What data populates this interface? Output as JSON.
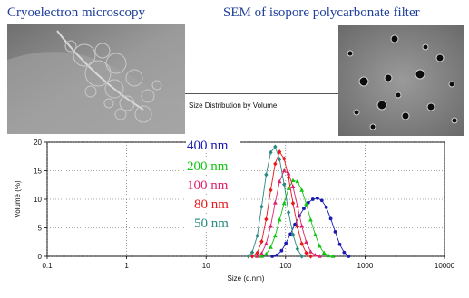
{
  "captions": {
    "left": "Cryoelectron microscopy",
    "right": "SEM of isopore polycarbonate filter"
  },
  "photo_left_label": "cryo-EM micrograph of vesicles",
  "photo_right_label": "SEM micrograph of porous filter",
  "colors": {
    "caption": "#1f3f99",
    "s400": "#1a1ab0",
    "s200": "#11c411",
    "s100": "#e0206a",
    "s80": "#e81818",
    "s50": "#2a8a80"
  },
  "chart_data": {
    "type": "line",
    "title": "Size Distribution by Volume",
    "xlabel": "Size (d.nm)",
    "ylabel": "Volume (%)",
    "xscale": "log",
    "xlim": [
      0.1,
      10000
    ],
    "ylim": [
      0,
      20
    ],
    "xticks": [
      "0.1",
      "1",
      "10",
      "100",
      "1000",
      "10000"
    ],
    "yticks": [
      "0",
      "5",
      "10",
      "15",
      "20"
    ],
    "grid": true,
    "legend_position": "top-center (inside plot)",
    "series": [
      {
        "name": "400 nm",
        "color": "#1a1ab0",
        "marker": "circle",
        "x": [
          68,
          78,
          89,
          101,
          115,
          131,
          149,
          170,
          193,
          220,
          251,
          286,
          325,
          370,
          421,
          480,
          546,
          622
        ],
        "y": [
          0,
          0.2,
          1.0,
          2.3,
          3.9,
          5.6,
          7.1,
          8.4,
          9.4,
          10.0,
          10.2,
          9.8,
          8.6,
          6.6,
          4.3,
          2.1,
          0.7,
          0
        ]
      },
      {
        "name": "200 nm",
        "color": "#11c411",
        "marker": "triangle",
        "x": [
          50,
          57,
          65,
          74,
          84,
          96,
          109,
          124,
          141,
          160,
          182,
          207,
          236,
          268,
          305,
          347,
          395
        ],
        "y": [
          0,
          0.4,
          1.6,
          3.6,
          6.4,
          9.3,
          11.9,
          13.3,
          13.1,
          11.6,
          9.2,
          6.4,
          3.8,
          1.8,
          0.6,
          0.1,
          0
        ]
      },
      {
        "name": "100 nm",
        "color": "#e0206a",
        "marker": "triangle",
        "x": [
          44,
          50,
          57,
          65,
          74,
          84,
          96,
          109,
          124,
          141,
          160,
          182,
          207,
          236,
          268
        ],
        "y": [
          0,
          0.5,
          2.2,
          5.3,
          9.4,
          13.1,
          15.0,
          14.5,
          12.2,
          8.8,
          5.3,
          2.5,
          0.8,
          0.2,
          0
        ]
      },
      {
        "name": "80 nm",
        "color": "#e81818",
        "marker": "diamond",
        "x": [
          38,
          44,
          50,
          57,
          65,
          74,
          84,
          96,
          109,
          124,
          141,
          160,
          182,
          207
        ],
        "y": [
          0,
          0.6,
          2.6,
          6.5,
          11.6,
          16.2,
          18.3,
          17.1,
          13.8,
          9.3,
          5.2,
          2.2,
          0.6,
          0
        ]
      },
      {
        "name": "50 nm",
        "color": "#2a8a80",
        "marker": "diamond",
        "x": [
          34,
          38,
          44,
          50,
          57,
          65,
          74,
          84,
          96,
          109,
          124,
          141,
          160
        ],
        "y": [
          0,
          0.7,
          3.6,
          8.7,
          14.3,
          18.2,
          19.2,
          17.0,
          12.6,
          7.7,
          3.8,
          1.3,
          0
        ]
      }
    ]
  }
}
